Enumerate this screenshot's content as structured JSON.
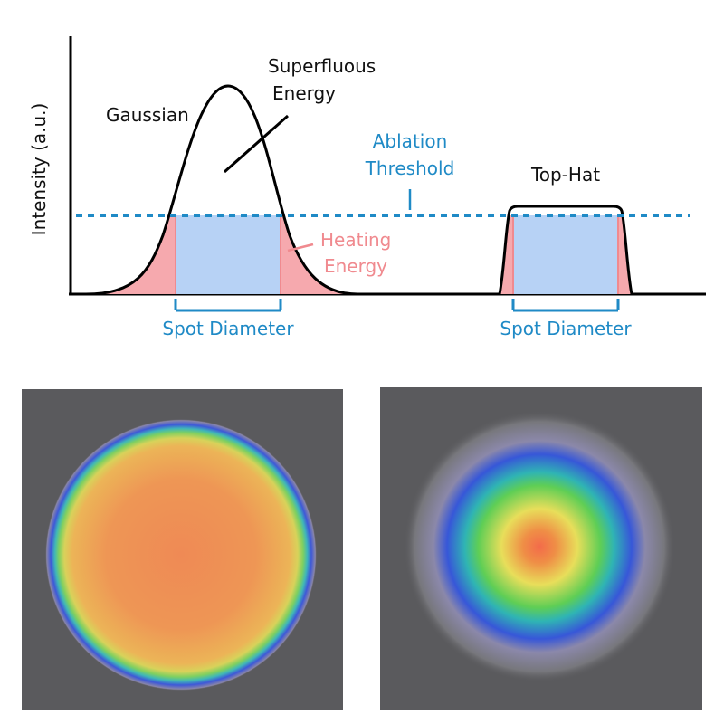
{
  "labels": {
    "y_axis": "Intensity (a.u.)",
    "gaussian": "Gaussian",
    "superfluous_line1": "Superfluous",
    "superfluous_line2": "Energy",
    "ablation_line1": "Ablation",
    "ablation_line2": "Threshold",
    "top_hat": "Top-Hat",
    "heating_line1": "Heating",
    "heating_line2": "Energy",
    "spot_diameter_left": "Spot Diameter",
    "spot_diameter_right": "Spot Diameter"
  },
  "colors": {
    "curve": "#000000",
    "threshold": "#1f8ac6",
    "spot_fill": "#b7d2f5",
    "heating_fill": "#f6a9ae",
    "heating_text": "#f08a8f",
    "label_blue": "#1f8ac6",
    "beam_background": "#5a5a5d"
  },
  "beam_images": [
    {
      "name": "top-hat-beam-profile",
      "profile": "uniform"
    },
    {
      "name": "gaussian-beam-profile",
      "profile": "gaussian"
    }
  ]
}
